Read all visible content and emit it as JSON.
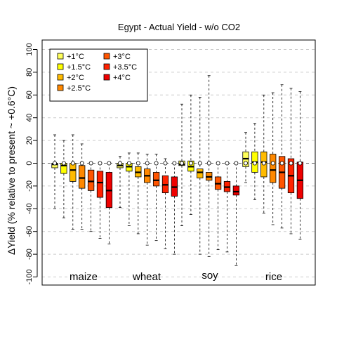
{
  "chart_data": {
    "type": "boxplot",
    "title": "Egypt - Actual Yield - w/o CO2",
    "ylabel": "ΔYield (% relative to present ~ +0.6°C)",
    "ylim": [
      -105,
      105
    ],
    "yticks": [
      100,
      80,
      60,
      40,
      20,
      0,
      -20,
      -40,
      -60,
      -80,
      -100
    ],
    "grid": "horizontal dashed",
    "legend_position": "top-left",
    "series": [
      {
        "name": "+1°C",
        "color": "#ffff5a"
      },
      {
        "name": "+1.5°C",
        "color": "#ffff00"
      },
      {
        "name": "+2°C",
        "color": "#ffbb00"
      },
      {
        "name": "+2.5°C",
        "color": "#ff8800"
      },
      {
        "name": "+3°C",
        "color": "#ff5500"
      },
      {
        "name": "+3.5°C",
        "color": "#ff2200"
      },
      {
        "name": "+4°C",
        "color": "#ee0000"
      }
    ],
    "groups": [
      {
        "name": "maize",
        "boxes": [
          {
            "wlo": -40,
            "q1": -4,
            "med": -1,
            "q3": 0,
            "whi": 25,
            "outliers": [
              0
            ]
          },
          {
            "wlo": -48,
            "q1": -9,
            "med": -2,
            "q3": 0,
            "whi": 20,
            "outliers": [
              0
            ]
          },
          {
            "wlo": -58,
            "q1": -16,
            "med": -6,
            "q3": 0,
            "whi": 25,
            "outliers": [
              0
            ]
          },
          {
            "wlo": -58,
            "q1": -22,
            "med": -13,
            "q3": -2,
            "whi": 17,
            "outliers": [
              0
            ]
          },
          {
            "wlo": -60,
            "q1": -24,
            "med": -16,
            "q3": -6,
            "whi": 0,
            "outliers": [
              0
            ]
          },
          {
            "wlo": -66,
            "q1": -30,
            "med": -17,
            "q3": -7,
            "whi": 0,
            "outliers": [
              0
            ]
          },
          {
            "wlo": -71,
            "q1": -39,
            "med": -24,
            "q3": -8,
            "whi": 0,
            "outliers": [
              0
            ]
          }
        ]
      },
      {
        "name": "wheat",
        "boxes": [
          {
            "wlo": -39,
            "q1": -4,
            "med": -2,
            "q3": 0,
            "whi": 6,
            "outliers": [
              0
            ]
          },
          {
            "wlo": -55,
            "q1": -7,
            "med": -3,
            "q3": 0,
            "whi": 9,
            "outliers": [
              0
            ]
          },
          {
            "wlo": -62,
            "q1": -12,
            "med": -8,
            "q3": -3,
            "whi": 9,
            "outliers": [
              0
            ]
          },
          {
            "wlo": -72,
            "q1": -17,
            "med": -11,
            "q3": -5,
            "whi": 8,
            "outliers": [
              0
            ]
          },
          {
            "wlo": -68,
            "q1": -20,
            "med": -15,
            "q3": -8,
            "whi": 8,
            "outliers": [
              0
            ]
          },
          {
            "wlo": -75,
            "q1": -26,
            "med": -19,
            "q3": -11,
            "whi": 4,
            "outliers": [
              0
            ]
          },
          {
            "wlo": -80,
            "q1": -29,
            "med": -21,
            "q3": -12,
            "whi": 0,
            "outliers": [
              0
            ]
          }
        ]
      },
      {
        "name": "soy",
        "boxes": [
          {
            "wlo": -55,
            "q1": -2,
            "med": -1,
            "q3": 2,
            "whi": 52,
            "outliers": [
              0
            ]
          },
          {
            "wlo": -45,
            "q1": -7,
            "med": -3,
            "q3": 2,
            "whi": 60,
            "outliers": [
              0
            ]
          },
          {
            "wlo": -80,
            "q1": -13,
            "med": -8,
            "q3": -5,
            "whi": 58,
            "outliers": [
              0
            ]
          },
          {
            "wlo": -82,
            "q1": -15,
            "med": -12,
            "q3": -8,
            "whi": 77,
            "outliers": [
              0
            ]
          },
          {
            "wlo": -76,
            "q1": -23,
            "med": -18,
            "q3": -12,
            "whi": 0,
            "outliers": [
              0
            ]
          },
          {
            "wlo": -78,
            "q1": -25,
            "med": -21,
            "q3": -16,
            "whi": 0,
            "outliers": [
              0
            ]
          },
          {
            "wlo": -90,
            "q1": -28,
            "med": -25,
            "q3": -20,
            "whi": 0,
            "outliers": [
              0
            ]
          }
        ]
      },
      {
        "name": "rice",
        "boxes": [
          {
            "wlo": -17,
            "q1": -3,
            "med": 4,
            "q3": 10,
            "whi": 27,
            "outliers": [
              0
            ]
          },
          {
            "wlo": -32,
            "q1": -8,
            "med": 1,
            "q3": 10,
            "whi": 35,
            "outliers": [
              0
            ]
          },
          {
            "wlo": -44,
            "q1": -12,
            "med": 1,
            "q3": 10,
            "whi": 60,
            "outliers": [
              0
            ]
          },
          {
            "wlo": -54,
            "q1": -17,
            "med": -6,
            "q3": 8,
            "whi": 62,
            "outliers": [
              0
            ]
          },
          {
            "wlo": -57,
            "q1": -22,
            "med": -8,
            "q3": 6,
            "whi": 69,
            "outliers": [
              0
            ]
          },
          {
            "wlo": -62,
            "q1": -26,
            "med": -11,
            "q3": 4,
            "whi": 66,
            "outliers": [
              0
            ]
          },
          {
            "wlo": -67,
            "q1": -31,
            "med": -15,
            "q3": 1,
            "whi": 63,
            "outliers": [
              0
            ]
          }
        ]
      }
    ]
  }
}
